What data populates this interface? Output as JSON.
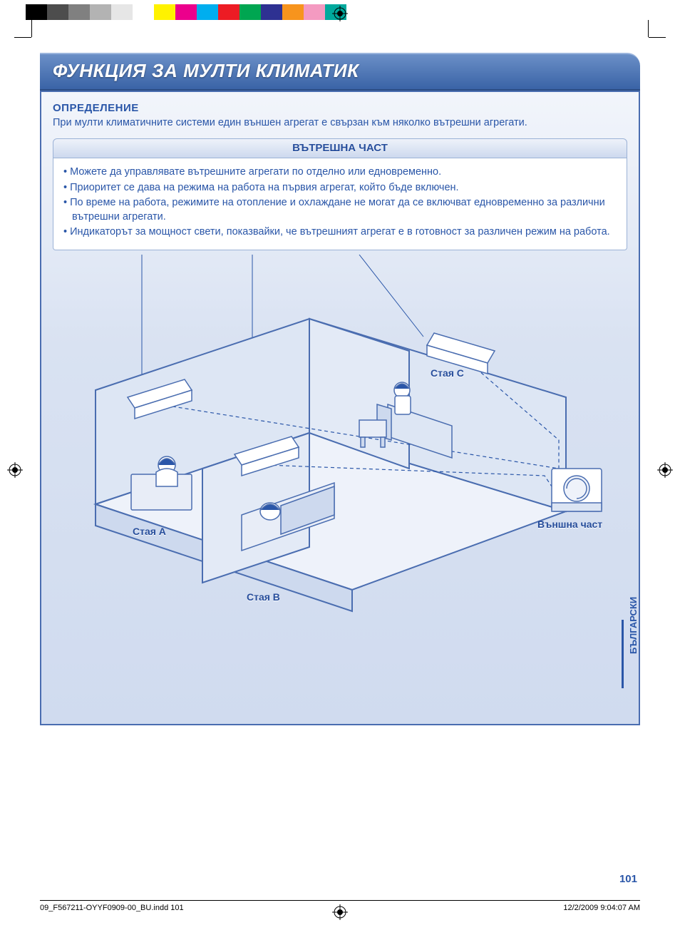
{
  "colorbar": [
    "#000000",
    "#4d4d4d",
    "#808080",
    "#b3b3b3",
    "#e6e6e6",
    "#ffffff",
    "#fff200",
    "#ec008c",
    "#00aeef",
    "#ed1c24",
    "#00a651",
    "#2e3192",
    "#f7941d",
    "#f49ac1",
    "#00a99d"
  ],
  "title": "ФУНКЦИЯ ЗА МУЛТИ КЛИМАТИК",
  "definition": {
    "heading": "ОПРЕДЕЛЕНИЕ",
    "text": "При мулти климатичните системи един външен агрегат е свързан към няколко вътрешни агрегати."
  },
  "inner": {
    "heading": "ВЪТРЕШНА ЧАСТ",
    "bullets": [
      "Можете да управлявате вътрешните агрегати по отделно или едновременно.",
      "Приоритет се дава на режима на работа на първия агрегат, който бъде включен.",
      "По време на работа, режимите на отопление и охлаждане не могат да се включват едновременно за различни вътрешни агрегати.",
      "Индикаторът за мощност свети, показвайки, че вътрешният агрегат е в готовност за различен режим на работа."
    ]
  },
  "diagram": {
    "room_a": "Стая A",
    "room_b": "Стая B",
    "room_c": "Стая C",
    "outdoor": "Външна част",
    "stroke": "#4a6db0",
    "wall_fill": "#c9d6ed",
    "floor_fill": "#e8edf7",
    "unit_fill": "#ffffff",
    "line_color": "#2a56a8"
  },
  "lang_tab": "БЪЛГАРСКИ",
  "page_number": "101",
  "footer": {
    "file": "09_F567211-OYYF0909-00_BU.indd   101",
    "datetime": "12/2/2009   9:04:07 AM"
  }
}
